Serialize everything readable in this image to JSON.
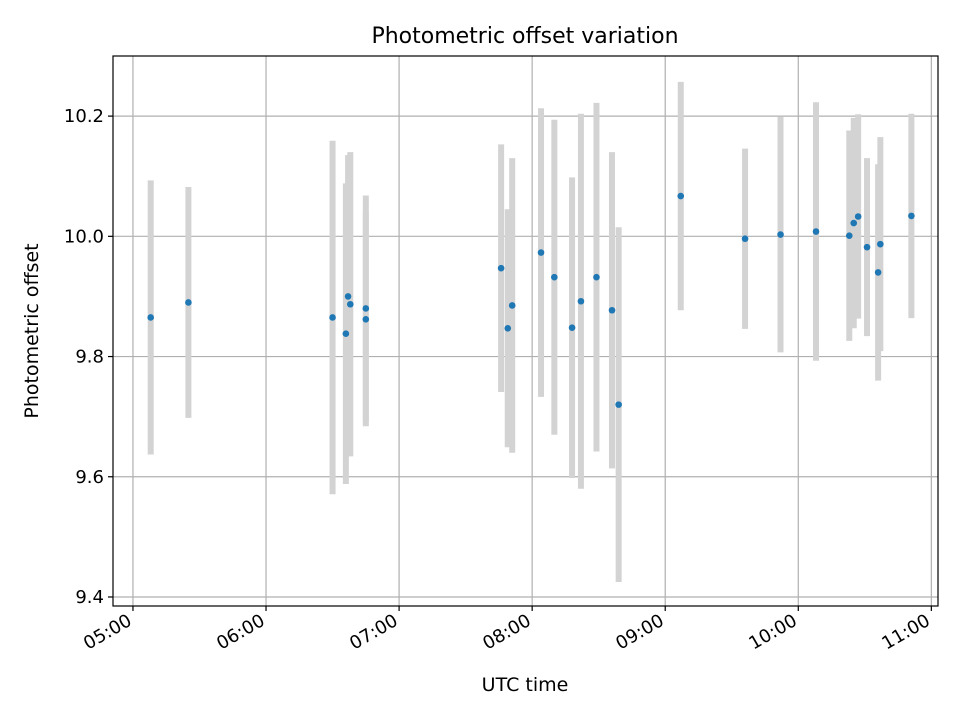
{
  "chart_data": {
    "type": "scatter",
    "title": "Photometric offset variation",
    "xlabel": "UTC time",
    "ylabel": "Photometric offset",
    "x_ticks": [
      "05:00",
      "06:00",
      "07:00",
      "08:00",
      "09:00",
      "10:00",
      "11:00"
    ],
    "y_ticks": [
      "9.4",
      "9.6",
      "9.8",
      "10.0",
      "10.2"
    ],
    "xlim": [
      "04:51",
      "11:03"
    ],
    "ylim": [
      9.385,
      10.3
    ],
    "grid": true,
    "colors": {
      "points": "#1f77b4",
      "errorbars": "#d3d3d3",
      "grid": "#b0b0b0"
    },
    "series": [
      {
        "points": [
          {
            "x": "05:08",
            "y": 9.865,
            "err": 0.228
          },
          {
            "x": "05:25",
            "y": 9.89,
            "err": 0.192
          },
          {
            "x": "06:30",
            "y": 9.865,
            "err": 0.294
          },
          {
            "x": "06:36",
            "y": 9.838,
            "err": 0.25
          },
          {
            "x": "06:37",
            "y": 9.9,
            "err": 0.235
          },
          {
            "x": "06:38",
            "y": 9.887,
            "err": 0.253
          },
          {
            "x": "06:45",
            "y": 9.862,
            "err": 0.178
          },
          {
            "x": "06:45",
            "y": 9.88,
            "err": 0.188
          },
          {
            "x": "07:46",
            "y": 9.947,
            "err": 0.206
          },
          {
            "x": "07:49",
            "y": 9.847,
            "err": 0.198
          },
          {
            "x": "07:51",
            "y": 9.885,
            "err": 0.245
          },
          {
            "x": "08:04",
            "y": 9.973,
            "err": 0.24
          },
          {
            "x": "08:10",
            "y": 9.932,
            "err": 0.262
          },
          {
            "x": "08:18",
            "y": 9.848,
            "err": 0.25
          },
          {
            "x": "08:22",
            "y": 9.892,
            "err": 0.312
          },
          {
            "x": "08:29",
            "y": 9.932,
            "err": 0.29
          },
          {
            "x": "08:36",
            "y": 9.877,
            "err": 0.263
          },
          {
            "x": "08:39",
            "y": 9.72,
            "err": 0.295
          },
          {
            "x": "09:07",
            "y": 10.067,
            "err": 0.19
          },
          {
            "x": "09:36",
            "y": 9.996,
            "err": 0.15
          },
          {
            "x": "09:52",
            "y": 10.003,
            "err": 0.196
          },
          {
            "x": "10:08",
            "y": 10.008,
            "err": 0.215
          },
          {
            "x": "10:23",
            "y": 10.001,
            "err": 0.175
          },
          {
            "x": "10:25",
            "y": 10.022,
            "err": 0.175
          },
          {
            "x": "10:27",
            "y": 10.033,
            "err": 0.17
          },
          {
            "x": "10:31",
            "y": 9.982,
            "err": 0.148
          },
          {
            "x": "10:36",
            "y": 9.94,
            "err": 0.18
          },
          {
            "x": "10:37",
            "y": 9.987,
            "err": 0.178
          },
          {
            "x": "10:51",
            "y": 10.034,
            "err": 0.17
          }
        ]
      }
    ]
  }
}
